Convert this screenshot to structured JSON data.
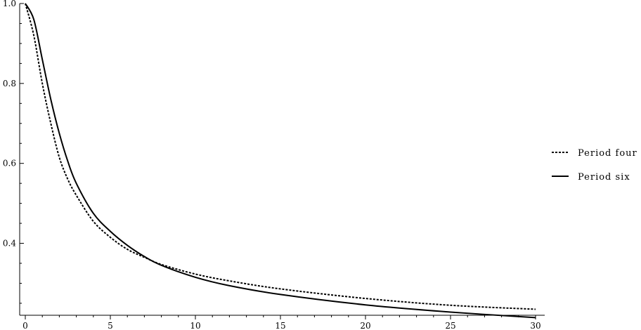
{
  "chart_data": {
    "type": "line",
    "title": "",
    "xlabel": "",
    "ylabel": "",
    "xlim": [
      0,
      30
    ],
    "ylim": [
      0.22,
      1.0
    ],
    "x_ticks": [
      0,
      5,
      10,
      15,
      20,
      25,
      30
    ],
    "x_tick_labels": [
      "0",
      "5",
      "10",
      "15",
      "20",
      "25",
      "30"
    ],
    "y_ticks": [
      0.4,
      0.6,
      0.8,
      1.0
    ],
    "y_tick_labels": [
      "0.4",
      "0.6",
      "0.8",
      "1.0"
    ],
    "grid": false,
    "legend_position": "right",
    "x": [
      0,
      0.5,
      1,
      1.5,
      2,
      2.5,
      3,
      4,
      5,
      6,
      7,
      8,
      10,
      12,
      15,
      20,
      25,
      30
    ],
    "series": [
      {
        "name": "Period four",
        "style": "dashed",
        "color": "#000000",
        "values": [
          1.0,
          0.92,
          0.8,
          0.7,
          0.615,
          0.56,
          0.52,
          0.455,
          0.415,
          0.385,
          0.365,
          0.347,
          0.323,
          0.306,
          0.286,
          0.262,
          0.245,
          0.235
        ]
      },
      {
        "name": "Period six",
        "style": "solid",
        "color": "#000000",
        "values": [
          1.0,
          0.96,
          0.86,
          0.76,
          0.675,
          0.605,
          0.55,
          0.475,
          0.43,
          0.395,
          0.367,
          0.345,
          0.315,
          0.294,
          0.272,
          0.246,
          0.228,
          0.214
        ]
      }
    ]
  }
}
